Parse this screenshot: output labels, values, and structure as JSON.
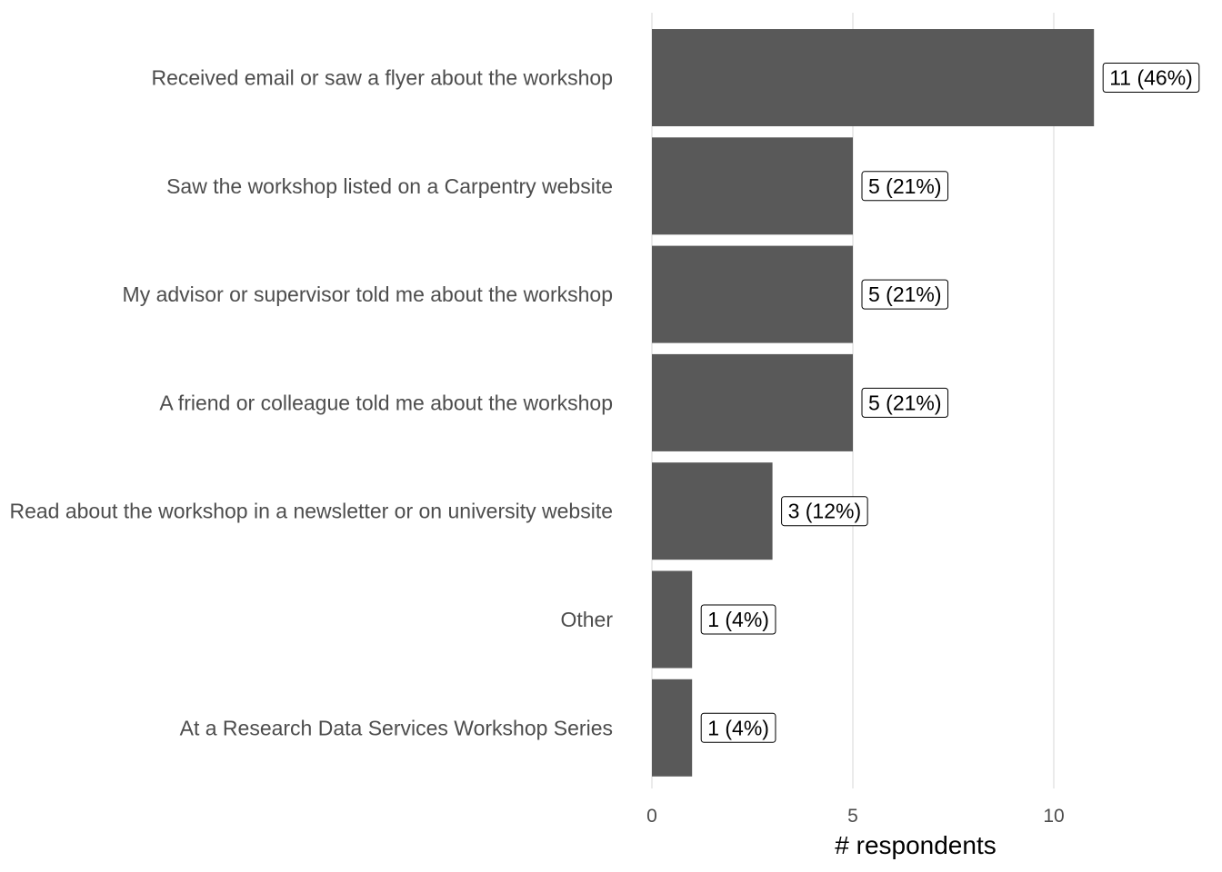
{
  "chart_data": {
    "type": "bar",
    "orientation": "horizontal",
    "categories": [
      "Received email or saw a flyer about the workshop",
      "Saw the workshop listed on a Carpentry website",
      "My advisor or supervisor told me about the workshop",
      "A friend or colleague told me about the workshop",
      "Read about the workshop in a newsletter or on university website",
      "Other",
      "At a Research Data Services Workshop Series"
    ],
    "values": [
      11,
      5,
      5,
      5,
      3,
      1,
      1
    ],
    "data_labels": [
      "11 (46%)",
      "5 (21%)",
      "5 (21%)",
      "5 (21%)",
      "3 (12%)",
      "1 (4%)",
      "1 (4%)"
    ],
    "xticks": [
      0,
      5,
      10
    ],
    "xtick_labels": [
      "0",
      "5",
      "10"
    ],
    "xlim": [
      0,
      13
    ],
    "xlabel": "# respondents",
    "ylabel": "",
    "title": "",
    "grid": "vertical major",
    "bar_color": "#595959"
  }
}
